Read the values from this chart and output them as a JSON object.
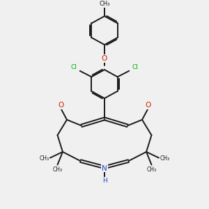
{
  "bg_color": "#f0f0f0",
  "bond_color": "#1a1a1a",
  "bond_width": 1.4,
  "dbo": 0.055,
  "figsize": [
    3.0,
    3.0
  ],
  "dpi": 100,
  "xlim": [
    0.0,
    10.0
  ],
  "ylim": [
    0.0,
    10.5
  ]
}
